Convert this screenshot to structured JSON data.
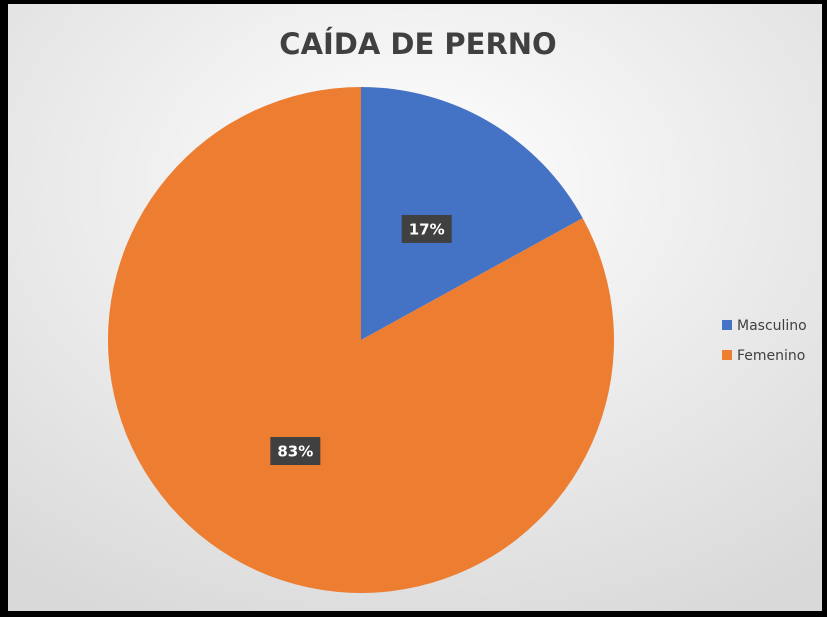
{
  "chart_data": {
    "type": "pie",
    "title": "CAÍDA DE PERNO",
    "categories": [
      "Masculino",
      "Femenino"
    ],
    "values": [
      17,
      83
    ],
    "value_labels": [
      "17%",
      "83%"
    ],
    "colors": [
      "#4472c4",
      "#ed7d31"
    ],
    "legend": "right"
  }
}
